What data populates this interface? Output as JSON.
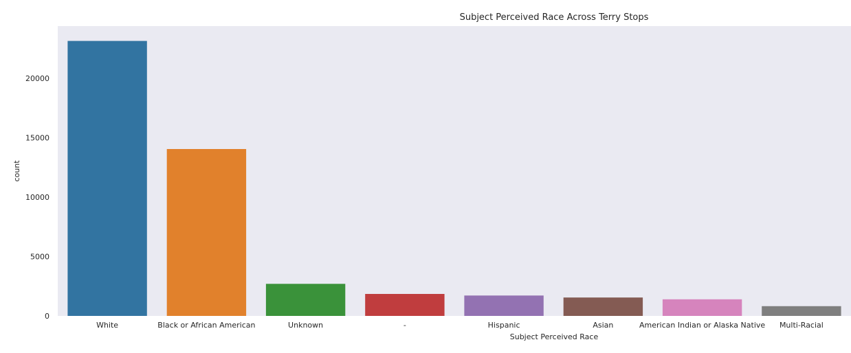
{
  "chart_data": {
    "type": "bar",
    "title": "Subject Perceived Race Across Terry Stops",
    "xlabel": "Subject Perceived Race",
    "ylabel": "count",
    "categories": [
      "White",
      "Black or African American",
      "Unknown",
      "-",
      "Hispanic",
      "Asian",
      "American Indian or Alaska Native",
      "Multi-Racial"
    ],
    "values": [
      23150,
      14050,
      2700,
      1850,
      1720,
      1550,
      1400,
      820
    ],
    "colors": [
      "#3274a1",
      "#e1812c",
      "#3a923a",
      "#c03d3e",
      "#9372b2",
      "#845b53",
      "#d684bd",
      "#7f7f7f"
    ],
    "yticks": [
      0,
      5000,
      10000,
      15000,
      20000
    ],
    "ylim": [
      0,
      24400
    ],
    "grid": false,
    "background": "#eaeaf2"
  }
}
